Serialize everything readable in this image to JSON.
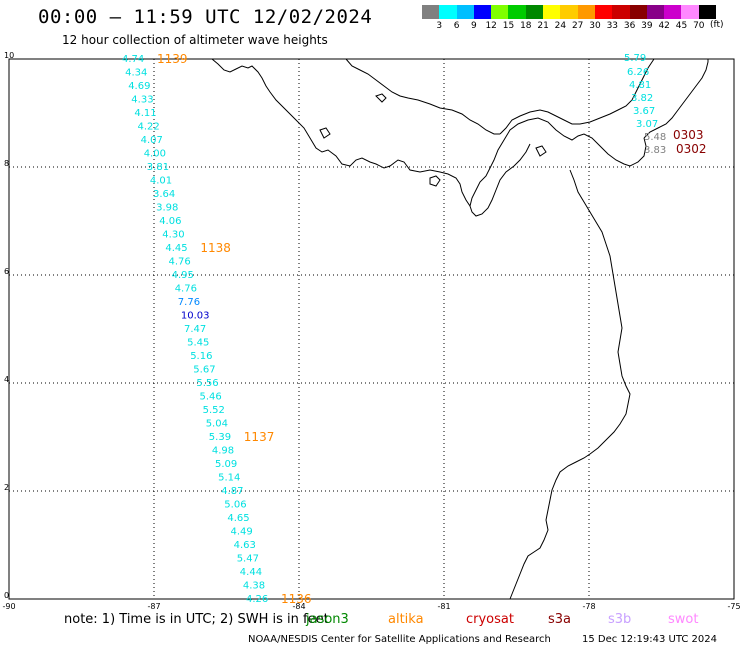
{
  "header": {
    "title": "00:00 – 11:59 UTC 12/02/2024",
    "subtitle": "12 hour collection of altimeter wave heights"
  },
  "legend": {
    "unit": "(ft)",
    "colors": [
      "#808080",
      "#00ffff",
      "#00bfff",
      "#0000ff",
      "#80ff00",
      "#00cc00",
      "#008800",
      "#ffff00",
      "#ffcc00",
      "#ff9900",
      "#ff0000",
      "#cc0000",
      "#880000",
      "#880088",
      "#cc00cc",
      "#ff88ff",
      "#000000"
    ],
    "ticks": [
      "3",
      "6",
      "9",
      "12",
      "15",
      "18",
      "21",
      "24",
      "27",
      "30",
      "33",
      "36",
      "39",
      "42",
      "45",
      "70"
    ]
  },
  "map": {
    "y_ticks": [
      "10",
      "8",
      "6",
      "4",
      "2",
      "0"
    ],
    "x_ticks": [
      "-90",
      "-87",
      "-84",
      "-81",
      "-78",
      "-75"
    ],
    "track_west": {
      "color_cyan": "#00e0e0",
      "values": [
        "4.74",
        "4.34",
        "4.69",
        "4.33",
        "4.11",
        "4.22",
        "4.07",
        "4.00",
        "3.81",
        "4.01",
        "3.64",
        "3.98",
        "4.06",
        "4.30",
        "4.45",
        "4.76",
        "4.95",
        "4.76",
        "7.76",
        "10.03",
        "7.47",
        "5.45",
        "5.16",
        "5.67",
        "5.56",
        "5.46",
        "5.52",
        "5.04",
        "5.39",
        "4.98",
        "5.09",
        "5.14",
        "4.87",
        "5.06",
        "4.65",
        "4.49",
        "4.63",
        "5.47",
        "4.44",
        "4.38",
        "4.26"
      ],
      "value_colors": {
        "18": "#0088ff",
        "19": "#0000cc"
      },
      "time_labels": [
        {
          "text": "1139",
          "index": 0
        },
        {
          "text": "1138",
          "index": 14
        },
        {
          "text": "1137",
          "index": 28
        },
        {
          "text": "1136",
          "index": 40
        }
      ],
      "time_color": "#ff8800"
    },
    "track_east": {
      "values": [
        "5.79",
        "6.26",
        "4.81",
        "3.82",
        "3.67",
        "3.07",
        "5.48",
        "3.83"
      ],
      "colors": [
        "#00e0e0",
        "#00e0e0",
        "#00e0e0",
        "#00e0e0",
        "#00e0e0",
        "#00e0e0",
        "#808080",
        "#808080"
      ],
      "time_labels": [
        "0303",
        "0302"
      ],
      "time_color": "#880000"
    }
  },
  "footer": {
    "note": "note: 1) Time is in UTC; 2) SWH is in feet",
    "satellites": [
      {
        "name": "jason3",
        "color": "#008800"
      },
      {
        "name": "altika",
        "color": "#ff8800"
      },
      {
        "name": "cryosat",
        "color": "#cc0000"
      },
      {
        "name": "s3a",
        "color": "#880000"
      },
      {
        "name": "s3b",
        "color": "#c8a0ff"
      },
      {
        "name": "swot",
        "color": "#ff88ff"
      }
    ],
    "credit": "NOAA/NESDIS Center for Satellite Applications and Research",
    "timestamp": "15 Dec 12:19:43 UTC 2024"
  }
}
